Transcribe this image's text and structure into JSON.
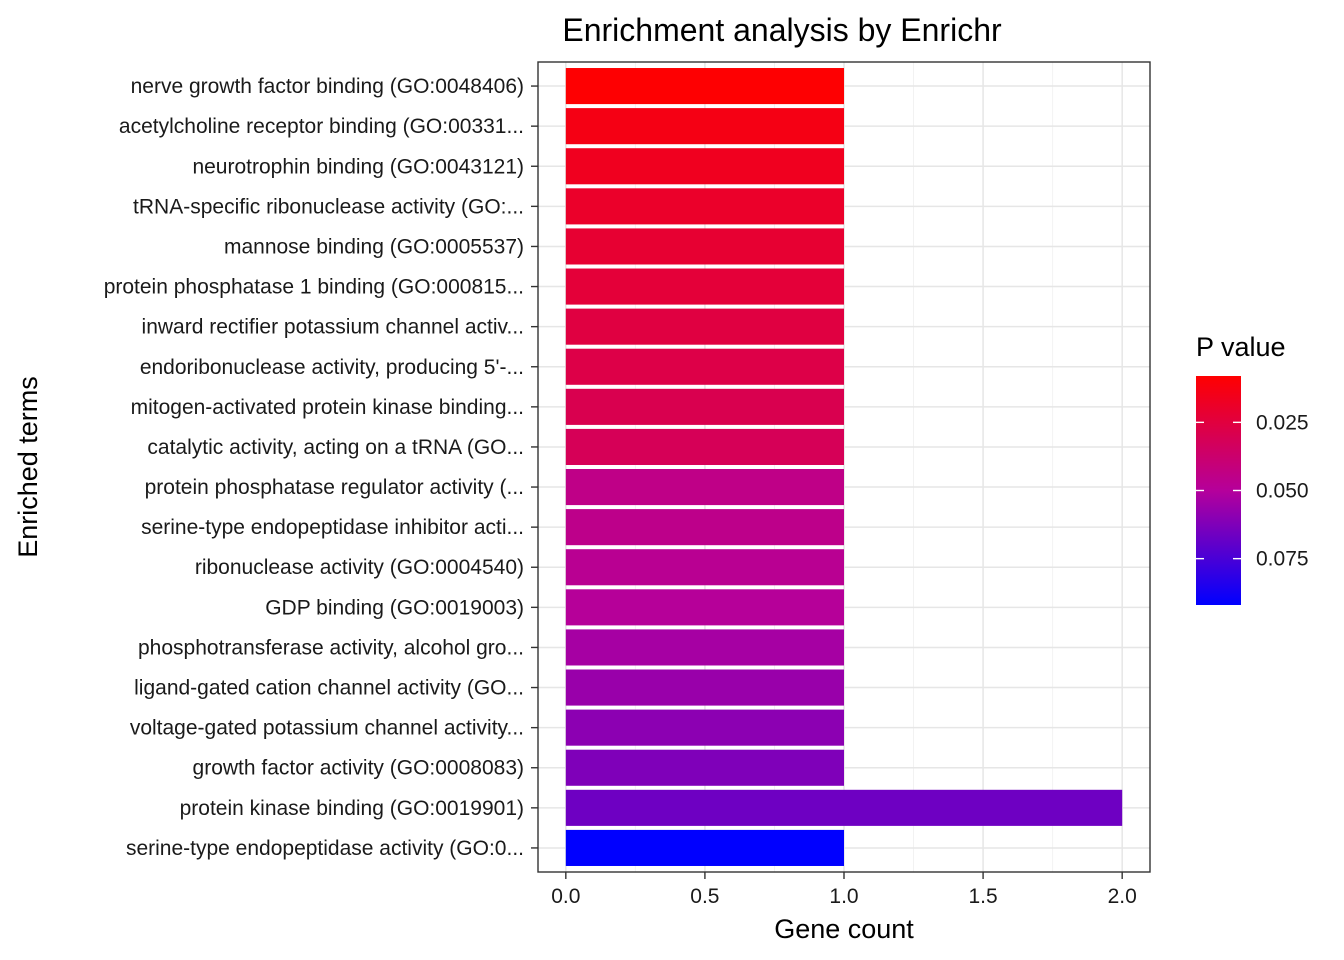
{
  "chart_data": {
    "type": "bar",
    "orientation": "horizontal",
    "title": "Enrichment analysis by Enrichr",
    "xlabel": "Gene count",
    "ylabel": "Enriched terms",
    "xlim": [
      -0.1,
      2.1
    ],
    "x_ticks": [
      0.0,
      0.5,
      1.0,
      1.5,
      2.0
    ],
    "x_tick_labels": [
      "0.0",
      "0.5",
      "1.0",
      "1.5",
      "2.0"
    ],
    "grid": true,
    "categories": [
      "nerve growth factor binding (GO:0048406)",
      "acetylcholine receptor binding (GO:00331...",
      "neurotrophin binding (GO:0043121)",
      "tRNA-specific ribonuclease activity (GO:...",
      "mannose binding (GO:0005537)",
      "protein phosphatase 1 binding (GO:000815...",
      "inward rectifier potassium channel activ...",
      "endoribonuclease activity, producing 5'-...",
      "mitogen-activated protein kinase binding...",
      "catalytic activity, acting on a tRNA (GO...",
      "protein phosphatase regulator activity (...",
      "serine-type endopeptidase inhibitor acti...",
      "ribonuclease activity (GO:0004540)",
      "GDP binding (GO:0019003)",
      "phosphotransferase activity, alcohol gro...",
      "ligand-gated cation channel activity (GO...",
      "voltage-gated potassium channel activity...",
      "growth factor activity (GO:0008083)",
      "protein kinase binding (GO:0019901)",
      "serine-type endopeptidase activity (GO:0..."
    ],
    "values": [
      1,
      1,
      1,
      1,
      1,
      1,
      1,
      1,
      1,
      1,
      1,
      1,
      1,
      1,
      1,
      1,
      1,
      1,
      2,
      1
    ],
    "p_values": [
      0.0085,
      0.0135,
      0.0165,
      0.0195,
      0.0215,
      0.0235,
      0.0255,
      0.0275,
      0.0295,
      0.0315,
      0.0445,
      0.0455,
      0.0475,
      0.0495,
      0.0535,
      0.0565,
      0.0595,
      0.0625,
      0.0665,
      0.092
    ],
    "legend": {
      "title": "P value",
      "placement": "right",
      "range": [
        0.008,
        0.092
      ],
      "ticks": [
        0.025,
        0.05,
        0.075
      ],
      "tick_labels": [
        "0.025",
        "0.050",
        "0.075"
      ],
      "low_color": "#ff0000",
      "high_color": "#0000ff"
    }
  }
}
